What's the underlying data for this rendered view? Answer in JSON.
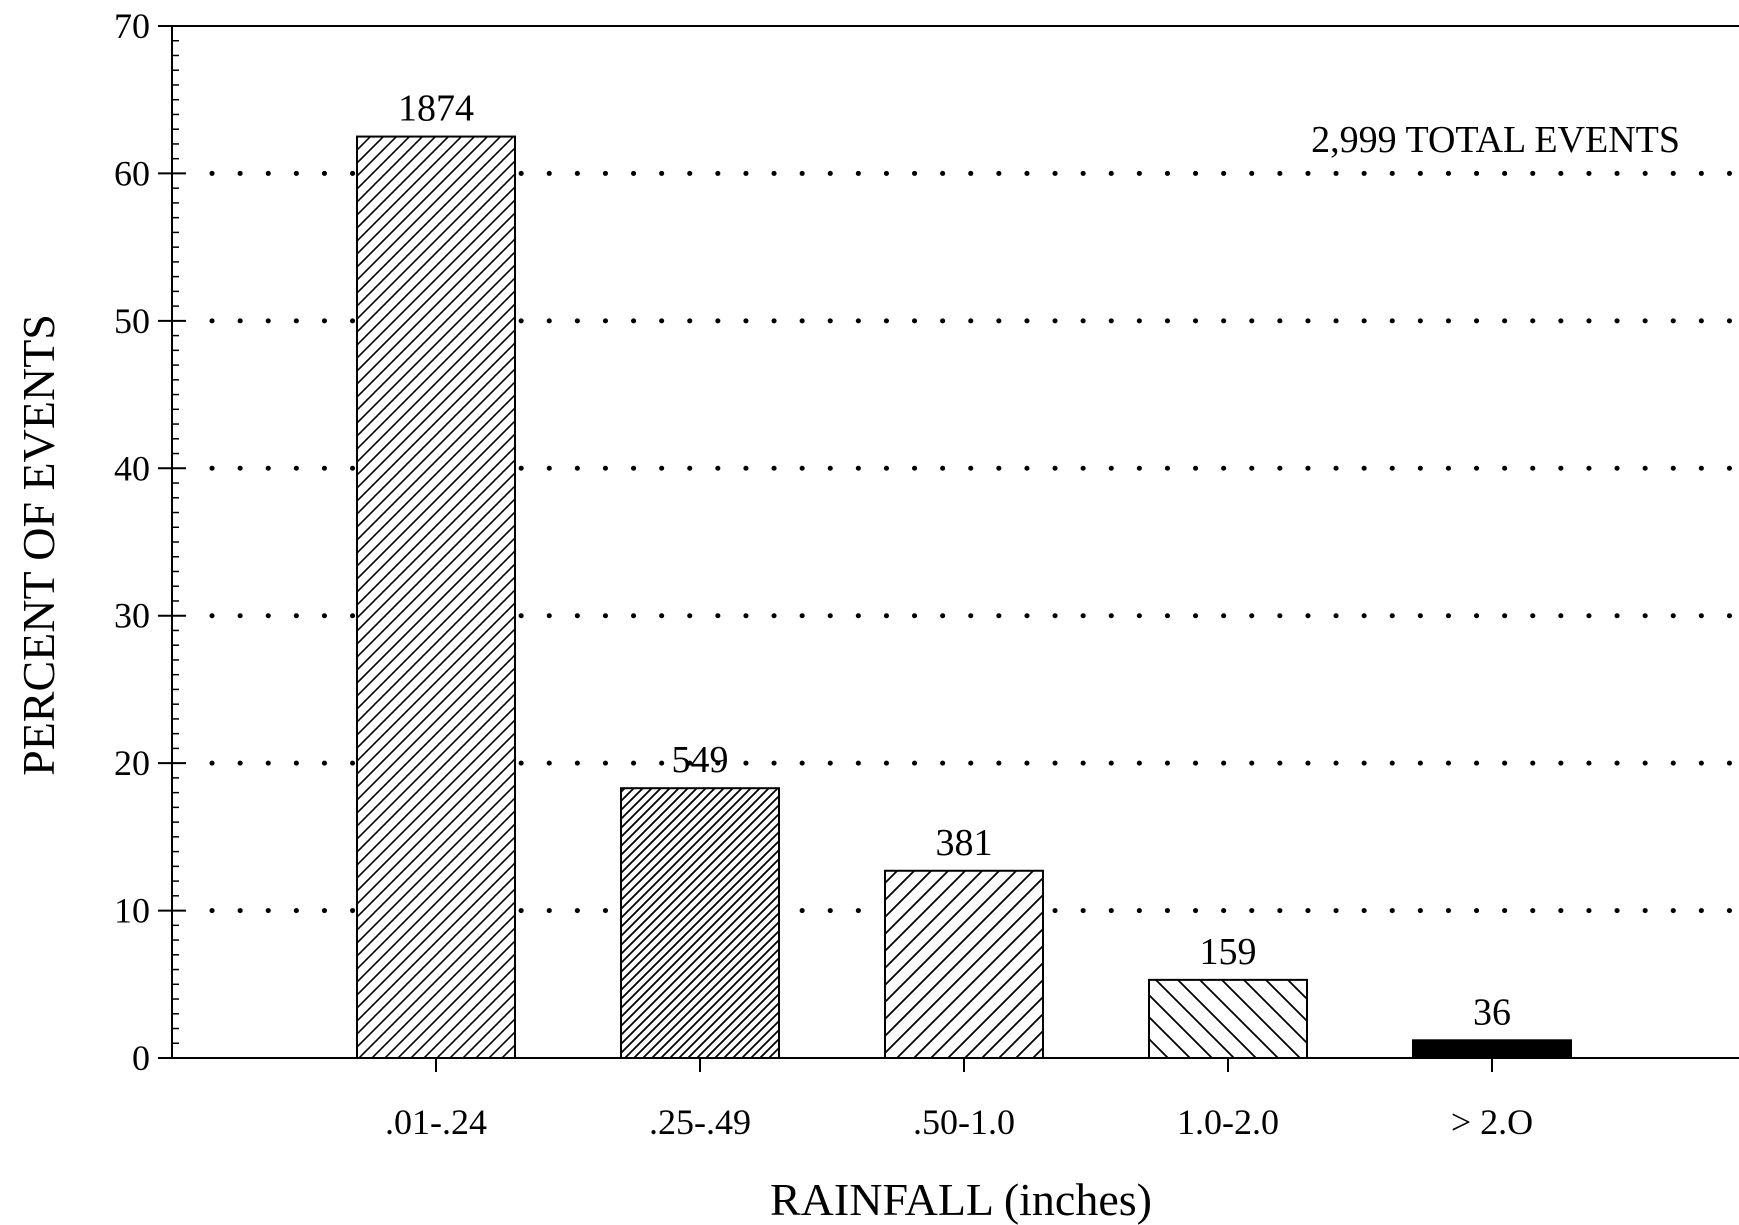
{
  "chart_data": {
    "type": "bar",
    "categories": [
      ".01-.24",
      ".25-.49",
      ".50-1.0",
      "1.0-2.0",
      "> 2.O"
    ],
    "values": [
      62.5,
      18.3,
      12.7,
      5.3,
      1.2
    ],
    "value_labels": [
      "1874",
      "549",
      "381",
      "159",
      "36"
    ],
    "xlabel": "RAINFALL (inches)",
    "ylabel": "PERCENT OF EVENTS",
    "ylim": [
      0,
      70
    ],
    "yticks": [
      0,
      10,
      20,
      30,
      40,
      50,
      60,
      70
    ],
    "ytick_labels": [
      "0",
      "10",
      "20",
      "30",
      "40",
      "50",
      "60",
      "70"
    ],
    "annotation": "2,999 TOTAL EVENTS",
    "grid": "dotted horizontal lines at 10-unit intervals",
    "bar_patterns": [
      "hatch-fwd-fine",
      "hatch-fwd-dense",
      "hatch-fwd-medium",
      "hatch-back-wide",
      "solid"
    ],
    "colors": {
      "ink": "#000000",
      "background": "#ffffff"
    }
  }
}
